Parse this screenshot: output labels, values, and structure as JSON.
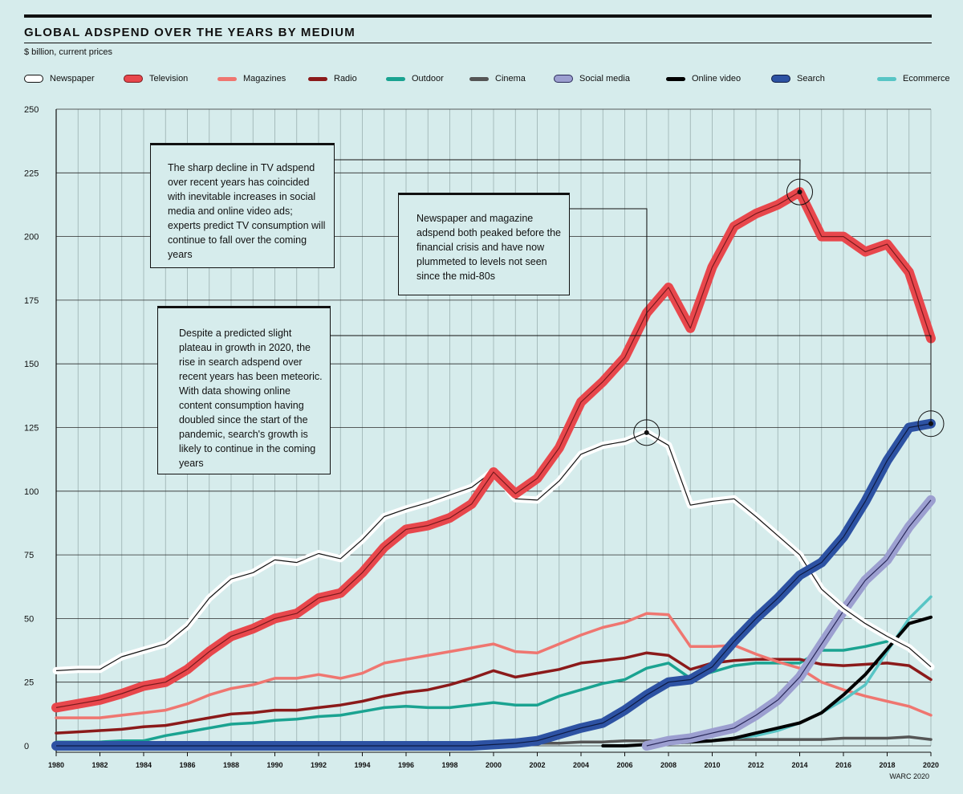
{
  "header": {
    "title": "GLOBAL ADSPEND OVER THE YEARS BY MEDIUM",
    "subtitle": "$ billion, current prices"
  },
  "source": "WARC 2020",
  "annotations": [
    {
      "id": "tv",
      "text": "The sharp decline in TV adspend over recent years has coincided with inevitable increases in social media and online video ads; experts predict TV consumption will continue to fall over the coming years"
    },
    {
      "id": "newspaper",
      "text": "Newspaper and magazine adspend both peaked before the financial crisis and have now plummeted to levels not seen since the mid-80s"
    },
    {
      "id": "search",
      "text": "Despite a predicted slight plateau in growth in 2020, the rise in search adspend over recent years has been meteoric. With data showing online content consumption having doubled since the start of the pandemic, search's growth is likely to continue in the coming years"
    }
  ],
  "chart_data": {
    "type": "line",
    "title": "GLOBAL ADSPEND OVER THE YEARS BY MEDIUM",
    "ylabel": "$ billion, current prices",
    "xlabel": "",
    "ylim": [
      0,
      250
    ],
    "xlim": [
      1980,
      2020
    ],
    "y_ticks": [
      0,
      25,
      50,
      75,
      100,
      125,
      150,
      175,
      200,
      225,
      250
    ],
    "x_ticks": [
      1980,
      1982,
      1984,
      1986,
      1988,
      1990,
      1992,
      1994,
      1996,
      1998,
      2000,
      2002,
      2004,
      2006,
      2008,
      2010,
      2012,
      2014,
      2016,
      2018,
      2020
    ],
    "grid": "vertical-yearly-and-horizontal",
    "legend_position": "top",
    "x": [
      1980,
      1981,
      1982,
      1983,
      1984,
      1985,
      1986,
      1987,
      1988,
      1989,
      1990,
      1991,
      1992,
      1993,
      1994,
      1995,
      1996,
      1997,
      1998,
      1999,
      2000,
      2001,
      2002,
      2003,
      2004,
      2005,
      2006,
      2007,
      2008,
      2009,
      2010,
      2011,
      2012,
      2013,
      2014,
      2015,
      2016,
      2017,
      2018,
      2019,
      2020
    ],
    "series": [
      {
        "name": "Newspaper",
        "color": "#ffffff",
        "values": [
          29.5,
          30,
          30,
          35,
          37.5,
          40,
          47,
          58,
          65.5,
          68,
          73,
          72,
          75.5,
          73.5,
          81,
          90,
          93,
          95.5,
          98.5,
          101.5,
          108,
          97,
          96.5,
          104,
          114.5,
          118,
          119.5,
          123,
          118,
          94.5,
          96,
          97,
          90,
          82.5,
          75,
          61.5,
          54,
          48,
          43,
          38.5,
          31
        ]
      },
      {
        "name": "Television",
        "color": "#e8474c",
        "values": [
          15,
          16.5,
          18,
          20.5,
          23.5,
          25,
          30,
          37,
          43,
          46,
          50,
          52,
          58,
          60,
          68,
          78,
          85,
          86.5,
          89.5,
          95,
          107.5,
          99,
          105,
          117,
          135,
          143,
          152.5,
          170,
          180,
          164,
          188,
          204,
          209,
          212.5,
          217.5,
          200,
          200,
          194,
          197,
          186,
          160
        ]
      },
      {
        "name": "Magazines",
        "color": "#ef7670",
        "values": [
          11,
          11,
          11,
          12,
          13,
          14,
          16.5,
          20,
          22.5,
          24,
          26.5,
          26.5,
          28,
          26.5,
          28.5,
          32.5,
          34,
          35.5,
          37,
          38.5,
          40,
          37,
          36.5,
          40,
          43.5,
          46.5,
          48.5,
          52,
          51.5,
          39,
          39,
          39.5,
          36,
          33,
          30.5,
          25,
          22,
          19.5,
          17.5,
          15.5,
          12
        ]
      },
      {
        "name": "Radio",
        "color": "#8b1a1a",
        "values": [
          5,
          5.5,
          6,
          6.5,
          7.5,
          8,
          9.5,
          11,
          12.5,
          13,
          14,
          14,
          15,
          16,
          17.5,
          19.5,
          21,
          22,
          24,
          26.5,
          29.5,
          27,
          28.5,
          30,
          32.5,
          33.5,
          34.5,
          36.5,
          35.5,
          30,
          32.5,
          33.5,
          34,
          34,
          34,
          32,
          31.5,
          32,
          32.5,
          31.5,
          26
        ]
      },
      {
        "name": "Outdoor",
        "color": "#1aa391",
        "values": [
          1.5,
          1.5,
          1.5,
          2,
          2,
          4,
          5.5,
          7,
          8.5,
          9,
          10,
          10.5,
          11.5,
          12,
          13.5,
          15,
          15.5,
          15,
          15,
          16,
          17,
          16,
          16,
          19.5,
          22,
          24.5,
          26,
          30.5,
          32.5,
          26.5,
          29,
          31.5,
          32.5,
          32.5,
          32.5,
          37.5,
          37.5,
          39,
          41,
          null,
          null
        ]
      },
      {
        "name": "Cinema",
        "color": "#555555",
        "values": [
          0.5,
          0.5,
          0.5,
          0.5,
          0.5,
          0.5,
          0.5,
          0.5,
          0.5,
          0.5,
          0.5,
          0.5,
          0.5,
          0.5,
          0.5,
          0.5,
          0.5,
          0.5,
          0.5,
          0.5,
          0.5,
          0.5,
          1,
          1,
          1.5,
          1.5,
          2,
          2,
          2,
          2,
          2,
          2.5,
          2.5,
          2.5,
          2.5,
          2.5,
          3,
          3,
          3,
          3.5,
          2.5
        ]
      },
      {
        "name": "Social media",
        "color": "#9c9fd0",
        "values": [
          null,
          null,
          null,
          null,
          null,
          null,
          null,
          null,
          null,
          null,
          null,
          null,
          null,
          null,
          null,
          null,
          null,
          null,
          null,
          null,
          null,
          null,
          null,
          null,
          null,
          null,
          null,
          0,
          2,
          3,
          5,
          7,
          12,
          18,
          27,
          40,
          53,
          65,
          73,
          86,
          96.5
        ]
      },
      {
        "name": "Online video",
        "color": "#000000",
        "values": [
          null,
          null,
          null,
          null,
          null,
          null,
          null,
          null,
          null,
          null,
          null,
          null,
          null,
          null,
          null,
          null,
          null,
          null,
          null,
          null,
          null,
          null,
          null,
          null,
          null,
          0,
          0,
          0.5,
          1,
          1.5,
          2,
          3,
          5,
          7,
          9,
          13,
          20,
          28,
          38,
          48,
          50.5
        ]
      },
      {
        "name": "Search",
        "color": "#2d52a3",
        "values": [
          0,
          0,
          0,
          0,
          0,
          0,
          0,
          0,
          0,
          0,
          0,
          0,
          0,
          0,
          0,
          0,
          0,
          0,
          0,
          0,
          0.5,
          1,
          2,
          4.5,
          7,
          9,
          14,
          20,
          25,
          26,
          31,
          41,
          50,
          58,
          67,
          72,
          82,
          96,
          112,
          125,
          126.5
        ]
      },
      {
        "name": "Ecommerce",
        "color": "#58c5c5",
        "values": [
          null,
          null,
          null,
          null,
          null,
          null,
          null,
          null,
          null,
          null,
          null,
          null,
          null,
          null,
          null,
          null,
          null,
          null,
          null,
          null,
          null,
          null,
          null,
          null,
          null,
          null,
          null,
          null,
          null,
          null,
          null,
          3,
          4,
          6,
          9,
          13,
          18,
          24,
          37,
          50,
          58.5
        ]
      }
    ],
    "highlights": [
      {
        "series": "Television",
        "x": 2014,
        "y": 217.5
      },
      {
        "series": "Newspaper",
        "x": 2007,
        "y": 123
      },
      {
        "series": "Search",
        "x": 2020,
        "y": 126.5
      }
    ]
  }
}
